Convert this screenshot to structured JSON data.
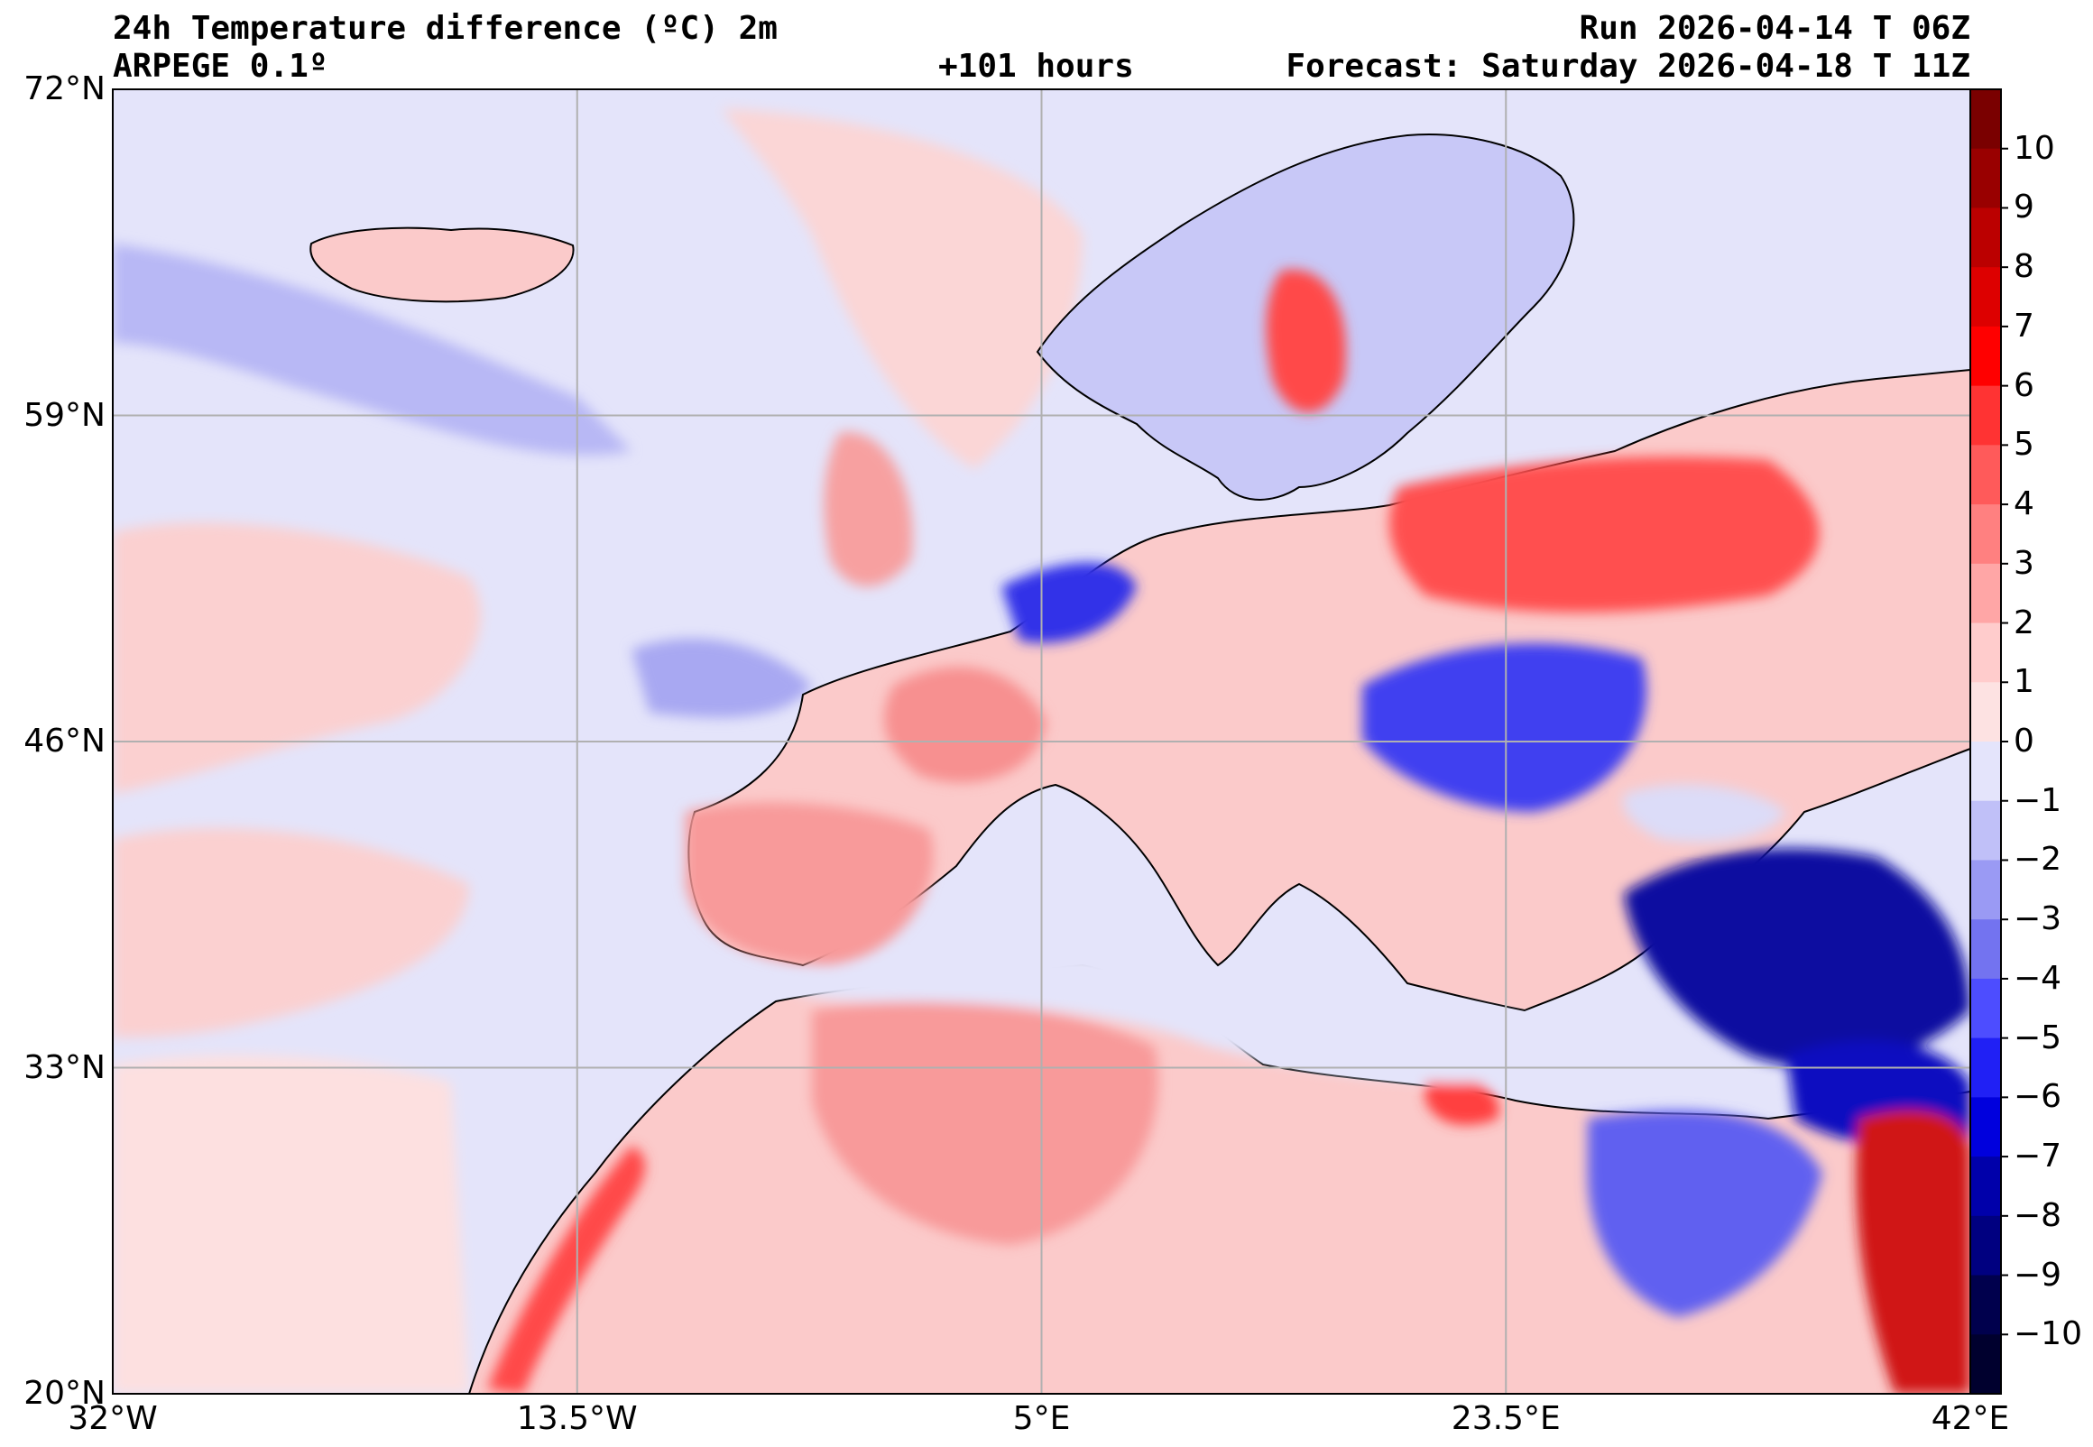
{
  "header": {
    "title_line1": "24h Temperature difference (ºC) 2m",
    "title_line2": "ARPEGE 0.1º",
    "lead": "+101 hours",
    "run": "Run 2026-04-14 T 06Z",
    "forecast": "Forecast: Saturday 2026-04-18 T 11Z"
  },
  "map": {
    "lon_range": [
      -32,
      42
    ],
    "lat_range": [
      20,
      72
    ],
    "lon_ticks": [
      {
        "value": -32,
        "label": "32°W"
      },
      {
        "value": -13.5,
        "label": "13.5°W"
      },
      {
        "value": 5,
        "label": "5°E"
      },
      {
        "value": 23.5,
        "label": "23.5°E"
      },
      {
        "value": 42,
        "label": "42°E"
      }
    ],
    "lat_ticks": [
      {
        "value": 72,
        "label": "72°N"
      },
      {
        "value": 59,
        "label": "59°N"
      },
      {
        "value": 46,
        "label": "46°N"
      },
      {
        "value": 33,
        "label": "33°N"
      },
      {
        "value": 20,
        "label": "20°N"
      }
    ],
    "grid": true,
    "land_color": "#fbd6d6",
    "sea_color": "#e4e4fa"
  },
  "colorbar": {
    "labels": [
      "10",
      "9",
      "8",
      "7",
      "6",
      "5",
      "4",
      "3",
      "2",
      "1",
      "0",
      "−1",
      "−2",
      "−3",
      "−4",
      "−5",
      "−6",
      "−7",
      "−8",
      "−9",
      "−10"
    ],
    "colors_top_to_bottom": [
      "#7a0000",
      "#990000",
      "#bb0000",
      "#dd0000",
      "#ff0000",
      "#ff3333",
      "#ff5a5a",
      "#ff8080",
      "#ffa6a6",
      "#ffcccc",
      "#fde2e2",
      "#e4e4fb",
      "#c0c0f8",
      "#9a9af4",
      "#7373f0",
      "#4d4dff",
      "#2020f5",
      "#0000dd",
      "#0000aa",
      "#000080",
      "#00004d",
      "#00002e"
    ]
  }
}
